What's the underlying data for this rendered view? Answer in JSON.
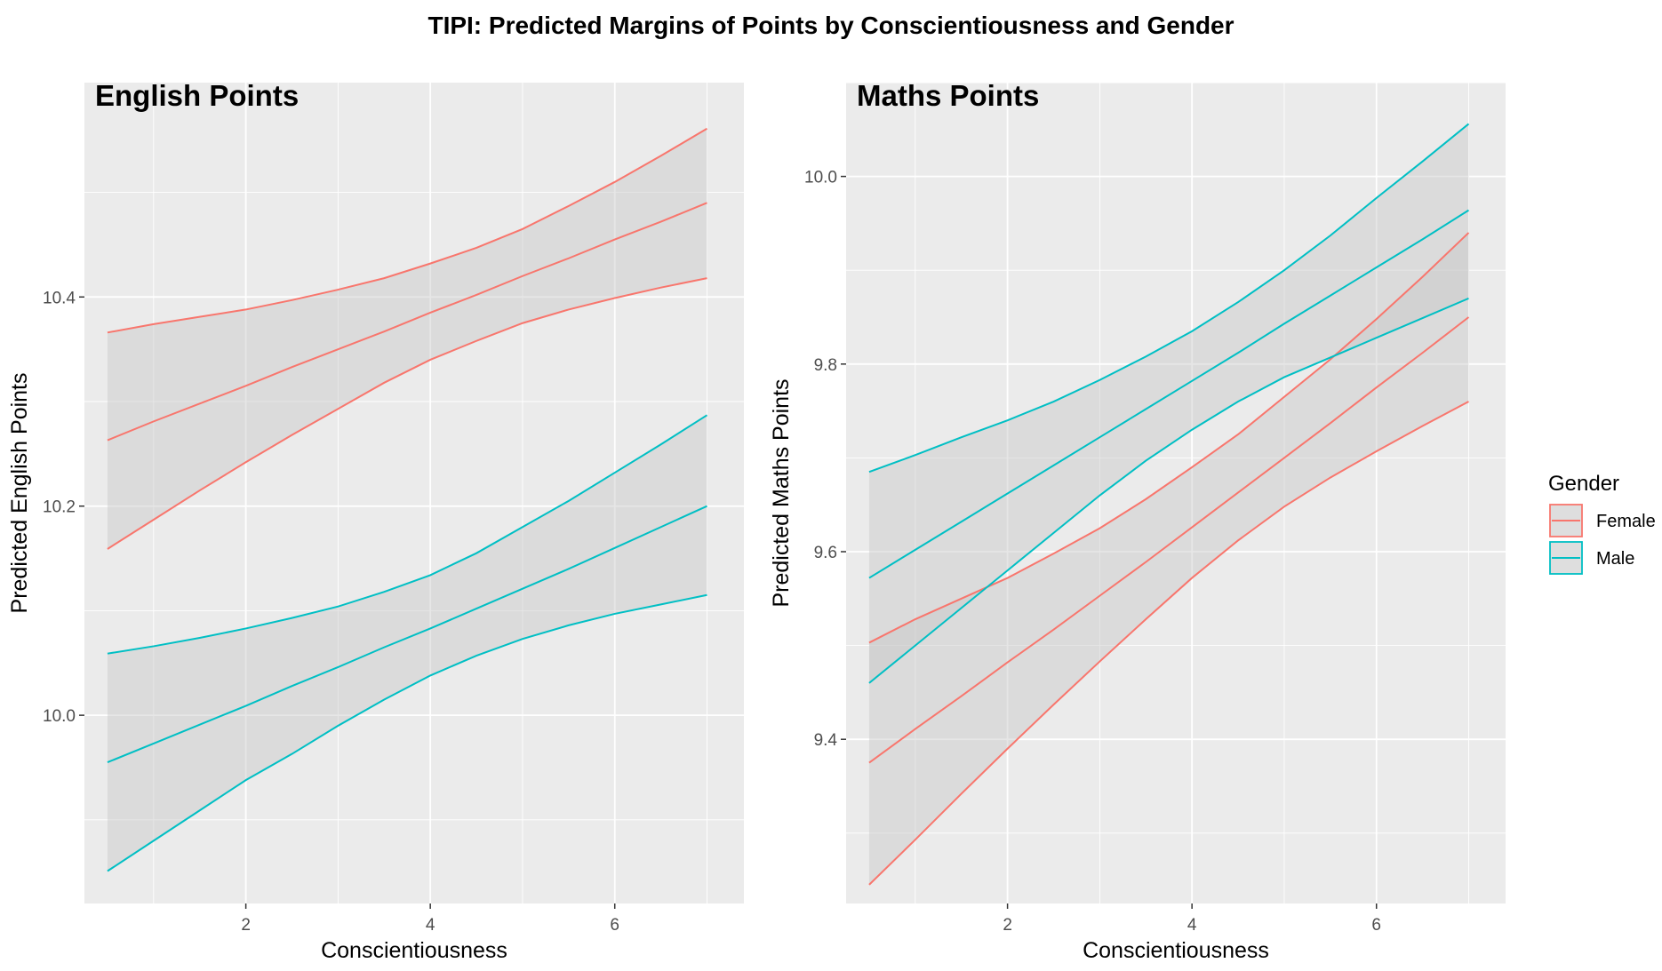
{
  "figure": {
    "title": "TIPI: Predicted Margins of Points by Conscientiousness and Gender"
  },
  "legend": {
    "title": "Gender",
    "placement": "right",
    "entries": [
      {
        "name": "Female",
        "color": "#F8766D"
      },
      {
        "name": "Male",
        "color": "#00BFC4"
      }
    ]
  },
  "colors": {
    "panel_bg": "#EBEBEB",
    "grid": "#FFFFFF",
    "ribbon": "#C8C8C8",
    "female": "#F8766D",
    "male": "#00BFC4"
  },
  "chart_data": [
    {
      "type": "line",
      "title": "English Points",
      "xlabel": "Conscientiousness",
      "ylabel": "Predicted English Points",
      "xlim": [
        0.25,
        7.4
      ],
      "ylim": [
        9.82,
        10.605
      ],
      "x_ticks": [
        2,
        4,
        6
      ],
      "x_tick_labels": [
        "2",
        "4",
        "6"
      ],
      "y_ticks": [
        10.0,
        10.2,
        10.4
      ],
      "y_tick_labels": [
        "10.0",
        "10.2",
        "10.4"
      ],
      "grid": true,
      "series": [
        {
          "name": "Female",
          "x": [
            0.5,
            1,
            1.5,
            2,
            2.5,
            3,
            3.5,
            4,
            4.5,
            5,
            5.5,
            6,
            6.5,
            7
          ],
          "fit": [
            10.263,
            10.281,
            10.298,
            10.315,
            10.333,
            10.35,
            10.367,
            10.385,
            10.402,
            10.42,
            10.437,
            10.455,
            10.472,
            10.49
          ],
          "lower": [
            10.159,
            10.187,
            10.215,
            10.242,
            10.268,
            10.293,
            10.318,
            10.34,
            10.358,
            10.375,
            10.388,
            10.399,
            10.409,
            10.418
          ],
          "upper": [
            10.366,
            10.374,
            10.381,
            10.388,
            10.397,
            10.407,
            10.418,
            10.432,
            10.447,
            10.465,
            10.487,
            10.51,
            10.535,
            10.561
          ]
        },
        {
          "name": "Male",
          "x": [
            0.5,
            1,
            1.5,
            2,
            2.5,
            3,
            3.5,
            4,
            4.5,
            5,
            5.5,
            6,
            6.5,
            7
          ],
          "fit": [
            9.955,
            9.973,
            9.991,
            10.009,
            10.028,
            10.046,
            10.065,
            10.083,
            10.102,
            10.121,
            10.14,
            10.16,
            10.18,
            10.2
          ],
          "lower": [
            9.851,
            9.88,
            9.909,
            9.938,
            9.963,
            9.99,
            10.015,
            10.038,
            10.057,
            10.073,
            10.086,
            10.097,
            10.106,
            10.115
          ],
          "upper": [
            10.059,
            10.066,
            10.074,
            10.083,
            10.093,
            10.104,
            10.118,
            10.134,
            10.155,
            10.18,
            10.205,
            10.232,
            10.259,
            10.287
          ]
        }
      ]
    },
    {
      "type": "line",
      "title": "Maths Points",
      "xlabel": "Conscientiousness",
      "ylabel": "Predicted Maths Points",
      "xlim": [
        0.25,
        7.4
      ],
      "ylim": [
        9.225,
        10.1
      ],
      "x_ticks": [
        2,
        4,
        6
      ],
      "x_tick_labels": [
        "2",
        "4",
        "6"
      ],
      "y_ticks": [
        9.4,
        9.6,
        9.8,
        10.0
      ],
      "y_tick_labels": [
        "9.4",
        "9.6",
        "9.8",
        "10.0"
      ],
      "grid": true,
      "series": [
        {
          "name": "Female",
          "x": [
            0.5,
            1,
            1.5,
            2,
            2.5,
            3,
            3.5,
            4,
            4.5,
            5,
            5.5,
            6,
            6.5,
            7
          ],
          "fit": [
            9.375,
            9.411,
            9.446,
            9.482,
            9.517,
            9.553,
            9.589,
            9.626,
            9.663,
            9.7,
            9.737,
            9.775,
            9.812,
            9.85
          ],
          "lower": [
            9.245,
            9.293,
            9.342,
            9.39,
            9.437,
            9.483,
            9.528,
            9.572,
            9.612,
            9.648,
            9.679,
            9.707,
            9.734,
            9.76
          ],
          "upper": [
            9.503,
            9.528,
            9.55,
            9.572,
            9.598,
            9.625,
            9.656,
            9.69,
            9.725,
            9.765,
            9.805,
            9.848,
            9.893,
            9.94
          ]
        },
        {
          "name": "Male",
          "x": [
            0.5,
            1,
            1.5,
            2,
            2.5,
            3,
            3.5,
            4,
            4.5,
            5,
            5.5,
            6,
            6.5,
            7
          ],
          "fit": [
            9.572,
            9.602,
            9.632,
            9.662,
            9.692,
            9.722,
            9.752,
            9.782,
            9.812,
            9.843,
            9.873,
            9.903,
            9.933,
            9.964
          ],
          "lower": [
            9.46,
            9.5,
            9.54,
            9.58,
            9.62,
            9.66,
            9.697,
            9.73,
            9.76,
            9.786,
            9.807,
            9.828,
            9.849,
            9.87
          ],
          "upper": [
            9.685,
            9.703,
            9.722,
            9.74,
            9.76,
            9.783,
            9.808,
            9.835,
            9.866,
            9.9,
            9.937,
            9.977,
            10.016,
            10.056
          ]
        }
      ]
    }
  ]
}
